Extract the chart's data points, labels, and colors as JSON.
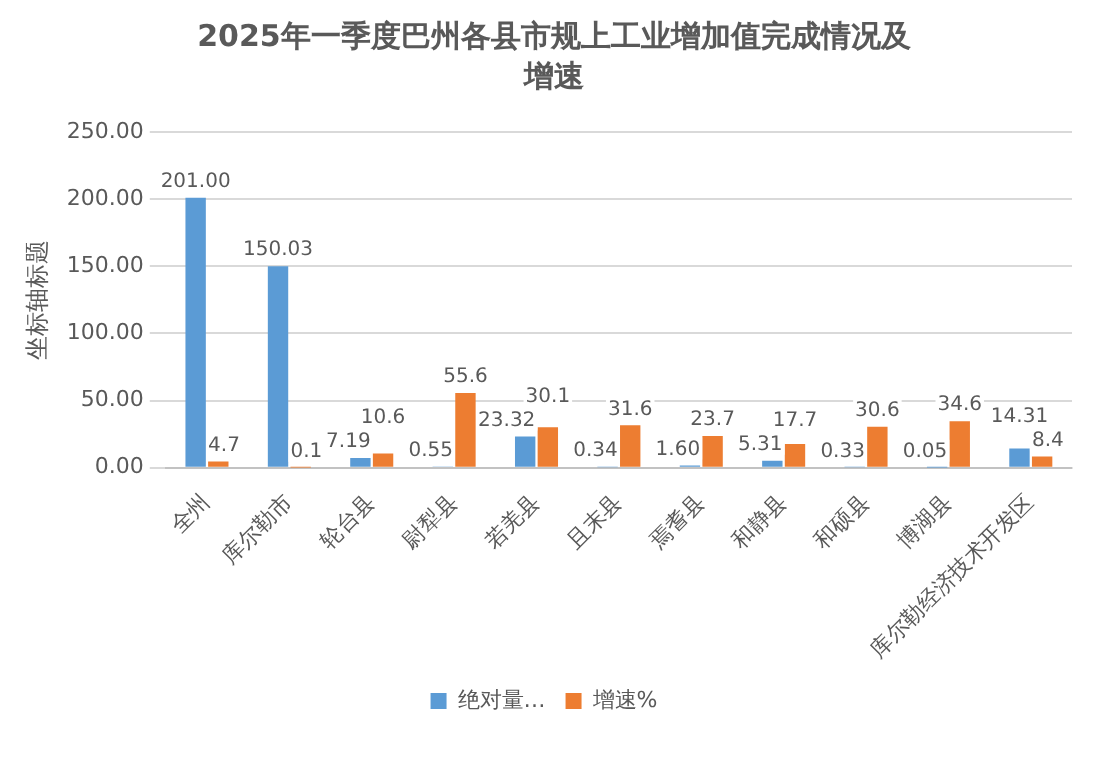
{
  "chart_data": {
    "type": "bar",
    "title": "2025年一季度巴州各县市规上工业增加值完成情况及增速",
    "ylabel": "坐标轴标题",
    "categories": [
      "全州",
      "库尔勒市",
      "轮台县",
      "尉犁县",
      "若羌县",
      "且末县",
      "焉耆县",
      "和静县",
      "和硕县",
      "博湖县",
      "库尔勒经济技术开发区"
    ],
    "series": [
      {
        "name": "绝对量…",
        "color": "#5b9bd5",
        "values": [
          201.0,
          150.03,
          7.19,
          0.55,
          23.32,
          0.34,
          1.6,
          5.31,
          0.33,
          0.05,
          14.31
        ],
        "value_labels": [
          "201.00",
          "150.03",
          "7.19",
          "0.55",
          "23.32",
          "0.34",
          "1.60",
          "5.31",
          "0.33",
          "0.05",
          "14.31"
        ]
      },
      {
        "name": "增速%",
        "color": "#ed7d31",
        "values": [
          4.7,
          0.1,
          10.6,
          55.6,
          30.1,
          31.6,
          23.7,
          17.7,
          30.6,
          34.6,
          8.4
        ],
        "value_labels": [
          "4.7",
          "0.1",
          "10.6",
          "55.6",
          "30.1",
          "31.6",
          "23.7",
          "17.7",
          "30.6",
          "34.6",
          "8.4"
        ]
      }
    ],
    "ylim": [
      0,
      250
    ],
    "yticks": [
      {
        "value": 0,
        "label": "0.00"
      },
      {
        "value": 50,
        "label": "50.00"
      },
      {
        "value": 100,
        "label": "100.00"
      },
      {
        "value": 150,
        "label": "150.00"
      },
      {
        "value": 200,
        "label": "200.00"
      },
      {
        "value": 250,
        "label": "250.00"
      }
    ],
    "grid": "y",
    "legend": "bottom"
  }
}
